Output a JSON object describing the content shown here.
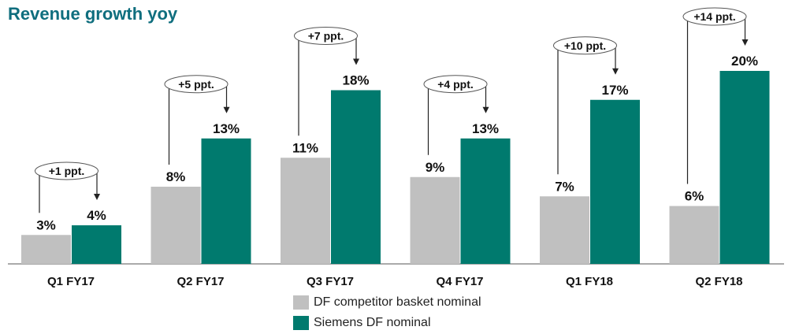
{
  "chart_data": {
    "type": "bar",
    "title": "Revenue growth yoy",
    "categories": [
      "Q1 FY17",
      "Q2 FY17",
      "Q3 FY17",
      "Q4 FY17",
      "Q1 FY18",
      "Q2 FY18"
    ],
    "series": [
      {
        "name": "DF competitor basket nominal",
        "values": [
          3,
          8,
          11,
          9,
          7,
          6
        ],
        "labels": [
          "3%",
          "8%",
          "11%",
          "9%",
          "7%",
          "6%"
        ],
        "color": "#c0c0c0"
      },
      {
        "name": "Siemens DF nominal",
        "values": [
          4,
          13,
          18,
          13,
          17,
          20
        ],
        "labels": [
          "4%",
          "13%",
          "18%",
          "13%",
          "17%",
          "20%"
        ],
        "color": "#007a6e"
      }
    ],
    "annotations": [
      "+1 ppt.",
      "+5 ppt.",
      "+7 ppt.",
      "+4 ppt.",
      "+10 ppt.",
      "+14 ppt."
    ],
    "ylim": [
      0,
      20
    ],
    "xlabel": "",
    "ylabel": "",
    "grid": false,
    "legend": "bottom"
  }
}
